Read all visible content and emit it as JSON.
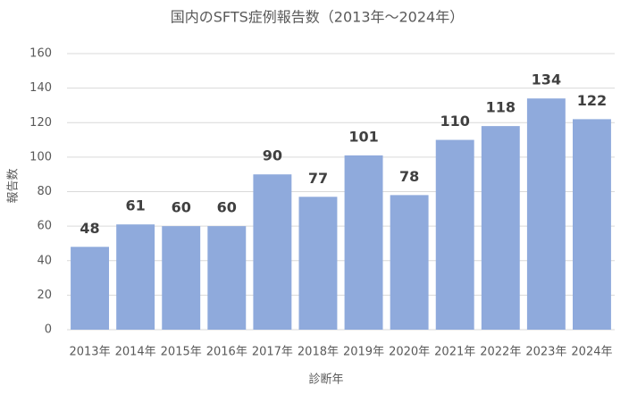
{
  "chart_data": {
    "type": "bar",
    "title": "国内のSFTS症例報告数（2013年～2024年）",
    "x_label": "診断年",
    "y_label": "報告数",
    "categories": [
      "2013年",
      "2014年",
      "2015年",
      "2016年",
      "2017年",
      "2018年",
      "2019年",
      "2020年",
      "2021年",
      "2022年",
      "2023年",
      "2024年"
    ],
    "values": [
      48,
      61,
      60,
      60,
      90,
      77,
      101,
      78,
      110,
      118,
      134,
      122
    ],
    "color": "#8faadc",
    "ylim": [
      0,
      160
    ],
    "yticks": [
      0,
      20,
      40,
      60,
      80,
      100,
      120,
      140,
      160
    ],
    "grid": true
  }
}
